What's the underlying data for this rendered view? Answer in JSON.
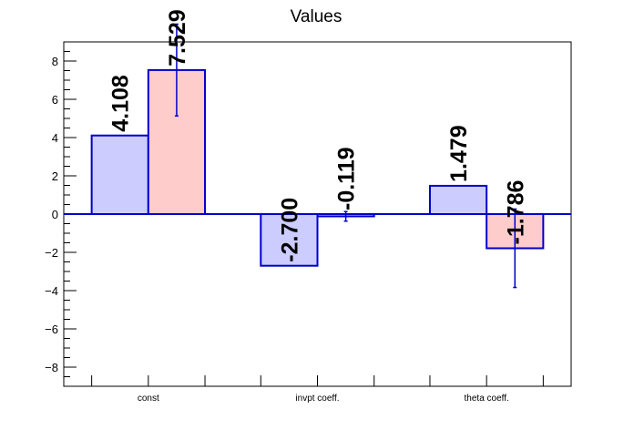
{
  "chart_data": {
    "type": "bar",
    "title": "Values",
    "categories": [
      "const",
      "invpt coeff.",
      "theta coeff."
    ],
    "series": [
      {
        "values": [
          4.108,
          -2.7,
          1.479
        ],
        "errors": [
          0,
          0,
          0
        ],
        "fill": "#ccccff",
        "stroke": "#0000cc"
      },
      {
        "values": [
          7.529,
          -0.119,
          -1.786
        ],
        "errors": [
          2.4,
          0.25,
          2.05
        ],
        "fill": "#ffcccc",
        "stroke": "#0000cc"
      }
    ],
    "value_labels": [
      [
        "4.108",
        "-2.700",
        "1.479"
      ],
      [
        "7.529",
        "-0.119",
        "-1.786"
      ]
    ],
    "ylim": [
      -9,
      9
    ],
    "yticks": [
      -8,
      -6,
      -4,
      -2,
      0,
      2,
      4,
      6,
      8
    ],
    "ytick_labels": [
      "−8",
      "−6",
      "−4",
      "−2",
      "0",
      "2",
      "4",
      "6",
      "8"
    ],
    "xlabel": "",
    "ylabel": "",
    "grid": false
  }
}
